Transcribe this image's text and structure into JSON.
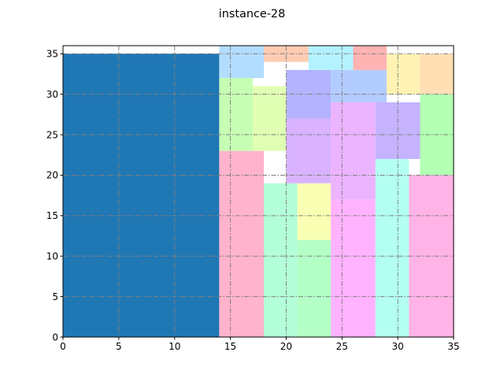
{
  "chart_data": {
    "type": "rectangle-packing",
    "title": "instance-28",
    "xlabel": "",
    "ylabel": "",
    "xlim": [
      0,
      35
    ],
    "ylim": [
      0,
      36
    ],
    "xticks": [
      0,
      5,
      10,
      15,
      20,
      25,
      30,
      35
    ],
    "yticks": [
      0,
      5,
      10,
      15,
      20,
      25,
      30,
      35
    ],
    "grid": true,
    "grid_style": "dash-dot",
    "grid_color": "#808080",
    "rectangles": [
      {
        "x": 0,
        "y": 0,
        "w": 14,
        "h": 35,
        "color": "#1f77b4"
      },
      {
        "x": 14,
        "y": 0,
        "w": 4,
        "h": 23,
        "color": "#ffb3cc"
      },
      {
        "x": 14,
        "y": 23,
        "w": 3,
        "h": 9,
        "color": "#c6ffb3"
      },
      {
        "x": 17,
        "y": 23,
        "w": 3,
        "h": 8,
        "color": "#e0ffb3"
      },
      {
        "x": 14,
        "y": 32,
        "w": 4,
        "h": 4,
        "color": "#b3ddff"
      },
      {
        "x": 18,
        "y": 34,
        "w": 4,
        "h": 2,
        "color": "#ffccb3"
      },
      {
        "x": 18,
        "y": 0,
        "w": 3,
        "h": 19,
        "color": "#b3ffd9"
      },
      {
        "x": 21,
        "y": 0,
        "w": 3,
        "h": 12,
        "color": "#b3ffc6"
      },
      {
        "x": 21,
        "y": 12,
        "w": 3,
        "h": 7,
        "color": "#f9ffb3"
      },
      {
        "x": 20,
        "y": 19,
        "w": 4,
        "h": 8,
        "color": "#d9b3ff"
      },
      {
        "x": 20,
        "y": 27,
        "w": 4,
        "h": 6,
        "color": "#b3b3ff"
      },
      {
        "x": 22,
        "y": 33,
        "w": 4,
        "h": 3,
        "color": "#b3f2ff"
      },
      {
        "x": 24,
        "y": 29,
        "w": 5,
        "h": 4,
        "color": "#b3ccff"
      },
      {
        "x": 26,
        "y": 33,
        "w": 3,
        "h": 3,
        "color": "#ffb3b3"
      },
      {
        "x": 24,
        "y": 0,
        "w": 4,
        "h": 17,
        "color": "#ffb3ff"
      },
      {
        "x": 24,
        "y": 17,
        "w": 4,
        "h": 12,
        "color": "#ecb3ff"
      },
      {
        "x": 28,
        "y": 0,
        "w": 3,
        "h": 22,
        "color": "#b3fff2"
      },
      {
        "x": 28,
        "y": 22,
        "w": 4,
        "h": 7,
        "color": "#c6b3ff"
      },
      {
        "x": 31,
        "y": 0,
        "w": 4,
        "h": 20,
        "color": "#ffb3e6"
      },
      {
        "x": 32,
        "y": 20,
        "w": 3,
        "h": 10,
        "color": "#b3ffb3"
      },
      {
        "x": 29,
        "y": 30,
        "w": 3,
        "h": 5,
        "color": "#fff2b3"
      },
      {
        "x": 32,
        "y": 30,
        "w": 3,
        "h": 5,
        "color": "#ffdfb3"
      }
    ]
  }
}
